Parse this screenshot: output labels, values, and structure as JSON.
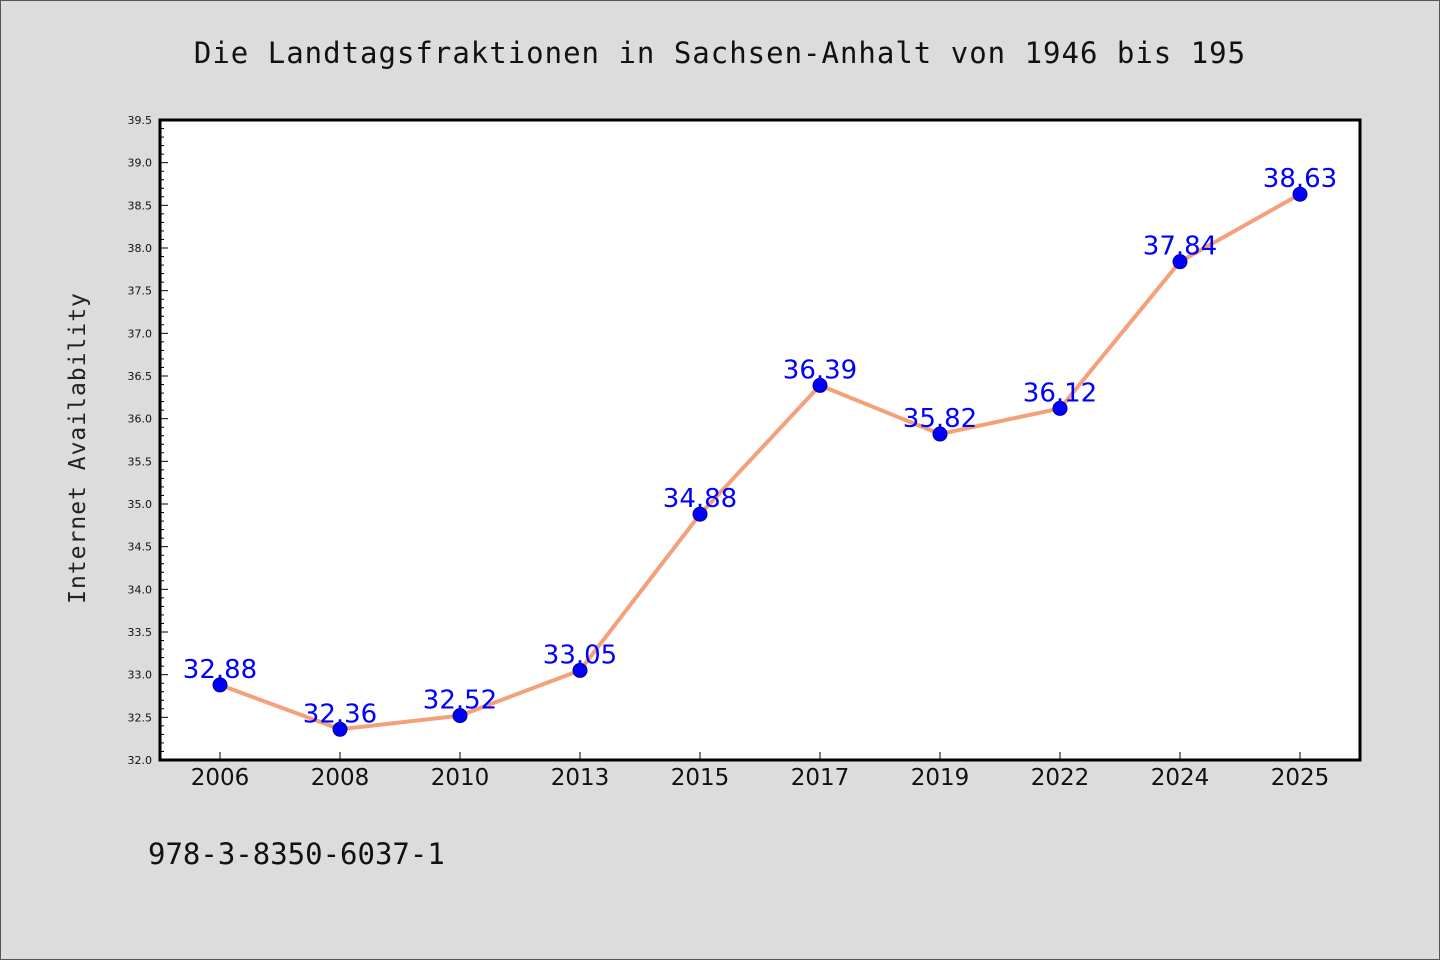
{
  "chart_data": {
    "type": "line",
    "title": "Die Landtagsfraktionen in Sachsen-Anhalt von 1946 bis 195",
    "xlabel": "",
    "ylabel": "Internet Availability",
    "categories": [
      "2006",
      "2008",
      "2010",
      "2013",
      "2015",
      "2017",
      "2019",
      "2022",
      "2024",
      "2025"
    ],
    "series": [
      {
        "values": [
          32.88,
          32.36,
          32.52,
          33.05,
          34.88,
          36.39,
          35.82,
          36.12,
          37.84,
          38.63
        ],
        "data_labels": [
          "32.88",
          "32.36",
          "32.52",
          "33.05",
          "34.88",
          "36.39",
          "35.82",
          "36.12",
          "37.84",
          "38.63"
        ]
      }
    ],
    "ylim": [
      32.0,
      39.5
    ],
    "yticks": [
      "32.0",
      "32.5",
      "33.0",
      "33.5",
      "34.0",
      "34.5",
      "35.0",
      "35.5",
      "36.0",
      "36.5",
      "37.0",
      "37.5",
      "38.0",
      "38.5",
      "39.0",
      "39.5"
    ],
    "grid": false,
    "legend": "none",
    "colors": {
      "line": "#f4a07a",
      "marker": "#0000ff",
      "data_label": "#0000ff",
      "plot_background": "#ffffff",
      "figure_background": "#dcdcdc"
    }
  },
  "footer_text": "978-3-8350-6037-1"
}
